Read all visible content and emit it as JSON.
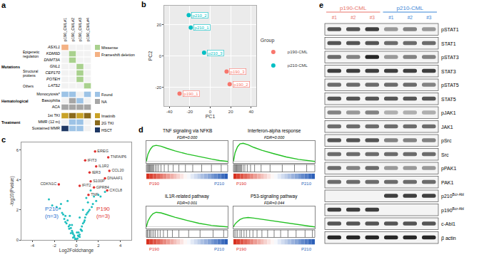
{
  "panel_a": {
    "label": "a",
    "columns": [
      "p190_CML#1",
      "p190_CML#2",
      "p190_CML#3",
      "p190_CML#4"
    ],
    "sections": [
      {
        "title": "Mutations",
        "legend": [
          {
            "name": "Missense",
            "color": "#a9d18e"
          },
          {
            "name": "Frameshift deletion",
            "color": "#f4b183"
          }
        ],
        "subgroups": [
          {
            "label": [
              "Epigenetic",
              "regulation"
            ],
            "rows": [
              {
                "name": "ASXL1",
                "cells": [
                  "Frameshift deletion",
                  null,
                  null,
                  null
                ]
              },
              {
                "name": "KDM6D",
                "cells": [
                  null,
                  "Missense",
                  null,
                  null
                ]
              },
              {
                "name": "DNMT3A",
                "cells": [
                  null,
                  "Missense",
                  null,
                  null
                ]
              }
            ]
          },
          {
            "label": [
              "Structural",
              "protiens"
            ],
            "rows": [
              {
                "name": "GNL1",
                "cells": [
                  null,
                  null,
                  "Missense",
                  null
                ]
              },
              {
                "name": "CEP170",
                "cells": [
                  null,
                  null,
                  "Missense",
                  null
                ]
              },
              {
                "name": "POTEH",
                "cells": [
                  null,
                  null,
                  "Missense",
                  null
                ]
              }
            ]
          },
          {
            "label": [
              "Others"
            ],
            "rows": [
              {
                "name": "LATS2",
                "cells": [
                  null,
                  null,
                  null,
                  "Missense"
                ]
              }
            ]
          }
        ]
      },
      {
        "title": "Hematological",
        "legend": [
          {
            "name": "Found",
            "color": "#9dc3e6"
          },
          {
            "name": "NA",
            "color": "#a6a6a6"
          }
        ],
        "rows": [
          {
            "name": "Monocytosis*",
            "cells": [
              "Found",
              "Found",
              null,
              "Found"
            ]
          },
          {
            "name": "Basophilia",
            "cells": [
              null,
              "NA",
              "Found",
              null
            ]
          },
          {
            "name": "ACA",
            "cells": [
              "NA",
              "NA",
              "NA",
              "NA"
            ]
          }
        ]
      },
      {
        "title": "Treatment",
        "legend": [
          {
            "name": "Imatinib",
            "color": "#c9a227"
          },
          {
            "name": "2G TKI",
            "color": "#8a6a1c"
          },
          {
            "name": "HSCT",
            "color": "#1f3864"
          }
        ],
        "rows": [
          {
            "name": "1st TKI",
            "cells": [
              "Imatinib",
              "2G TKI",
              "Imatinib",
              "2G TKI"
            ]
          },
          {
            "name": "MMR (12 m)",
            "cells": [
              null,
              "Found",
              "Found",
              null
            ]
          },
          {
            "name": "Sustained MMR",
            "cells": [
              "HSCT",
              "Found",
              "Found",
              null
            ]
          }
        ]
      }
    ]
  },
  "chart_data": [
    {
      "type": "scatter",
      "label": "b",
      "x_label": "PC1",
      "y_label": "PC2",
      "legend_title": "Group",
      "legend": "right",
      "grid": true,
      "xlim": [
        -45,
        45
      ],
      "xticks": [
        -40,
        -20,
        0,
        20,
        40
      ],
      "ylim": [
        -32,
        32
      ],
      "yticks": [
        -20,
        0,
        20
      ],
      "series": [
        {
          "name": "p190-CML",
          "color": "#F8766D",
          "labels": [
            "p190_1",
            "p190_2",
            "p190_3"
          ],
          "x": [
            -30,
            19,
            16
          ],
          "y": [
            -24,
            -18,
            -10
          ]
        },
        {
          "name": "p210-CML",
          "color": "#00BFC4",
          "labels": [
            "p210_1",
            "p210_2",
            "p210_3"
          ],
          "x": [
            -19,
            -21,
            -6
          ],
          "y": [
            18,
            26,
            2
          ]
        }
      ]
    },
    {
      "type": "scatter",
      "label": "c",
      "x_label": "Log2Foldchange",
      "y_label": "-log10(Pvalue)",
      "grid": false,
      "xlim": [
        -5,
        5
      ],
      "xticks": [
        -4,
        -2,
        0,
        2,
        4
      ],
      "ylim": [
        0,
        6.5
      ],
      "yticks": [
        0,
        2,
        4,
        6
      ],
      "color": "#1fbfbf",
      "x": [
        -0.1,
        0.1,
        -0.2,
        0.2,
        -0.3,
        0.3,
        0.0,
        -0.4,
        0.4,
        -0.5,
        0.5,
        -0.6,
        0.6,
        -0.8,
        0.8,
        -1.0,
        1.0,
        -1.2,
        1.2,
        -1.5,
        1.5,
        -0.3,
        0.3,
        -0.7,
        0.7,
        -1.1,
        1.1,
        -0.2,
        0.2,
        -0.9,
        0.9,
        -1.8,
        1.8,
        -2.2,
        2.2,
        -0.5,
        0.5,
        -1.3,
        1.4,
        -0.1,
        0.15,
        -0.35,
        0.45,
        -0.65,
        0.75,
        -1.0,
        1.05,
        -2.5,
        2.6,
        0.9,
        -0.4,
        0.6,
        1.6,
        -1.4,
        2.0,
        -0.8,
        1.3,
        0.3,
        -0.6,
        0.05
      ],
      "y": [
        0.05,
        0.1,
        0.2,
        0.25,
        0.4,
        0.35,
        0.02,
        0.6,
        0.7,
        0.8,
        0.9,
        1.0,
        1.1,
        1.3,
        1.5,
        1.6,
        1.8,
        1.7,
        2.0,
        2.1,
        2.4,
        0.15,
        0.2,
        0.9,
        1.2,
        1.4,
        1.9,
        0.3,
        0.5,
        1.1,
        1.7,
        2.2,
        2.6,
        2.3,
        2.9,
        0.45,
        0.6,
        1.8,
        2.2,
        0.1,
        0.3,
        0.5,
        0.65,
        0.75,
        1.3,
        1.2,
        2.5,
        2.7,
        3.2,
        2.8,
        1.0,
        2.0,
        2.9,
        2.4,
        3.0,
        2.6,
        3.3,
        1.5,
        1.6,
        0.5
      ],
      "highlight": {
        "color": "#e03030",
        "labels": [
          "EREG",
          "TNFAIP6",
          "IFIT3",
          "IL1R2",
          "CCL20",
          "IER3",
          "DNAAF1",
          "S100P",
          "IFIT2",
          "GPR84",
          "CXCL8",
          "TNF",
          "CDKN1C"
        ],
        "x": [
          1.7,
          2.9,
          0.8,
          1.8,
          3.0,
          1.2,
          2.6,
          1.3,
          0.3,
          1.6,
          2.8,
          1.1,
          -1.6
        ],
        "y": [
          5.9,
          5.5,
          5.3,
          4.9,
          4.6,
          4.5,
          4.1,
          3.9,
          3.6,
          3.5,
          3.3,
          3.0,
          3.7
        ]
      },
      "group_texts": [
        {
          "lines": [
            "P210",
            "(n=3)"
          ],
          "color": "#1f6fd1"
        },
        {
          "lines": [
            "P190",
            "(n=3)"
          ],
          "color": "#e03030"
        }
      ]
    },
    {
      "type": "line",
      "label": "d",
      "panels": [
        {
          "title": "TNF signaling via NFKB",
          "subtitle": "FDR=0.000",
          "color": "#22c022",
          "tick_labels": false,
          "xlim": [
            0,
            100
          ],
          "ylim": [
            -0.05,
            0.7
          ],
          "x": [
            0,
            2,
            5,
            8,
            12,
            18,
            25,
            35,
            50,
            65,
            80,
            90,
            100
          ],
          "values": [
            0,
            0.25,
            0.42,
            0.52,
            0.55,
            0.52,
            0.45,
            0.36,
            0.25,
            0.16,
            0.08,
            0.03,
            0
          ],
          "hits": [
            1,
            2,
            3,
            4,
            5,
            6,
            7,
            8,
            9,
            11,
            13,
            15,
            18,
            22,
            27,
            33,
            40,
            48,
            57,
            68,
            80,
            92
          ],
          "group_labels": [
            {
              "text": "P190",
              "color": "#e03030"
            },
            {
              "text": "P210",
              "color": "#2c5fb8"
            }
          ]
        },
        {
          "title": "Interferon-alpha response",
          "subtitle": "FDR=0.000",
          "color": "#22c022",
          "tick_labels": false,
          "xlim": [
            0,
            100
          ],
          "ylim": [
            -0.05,
            0.7
          ],
          "x": [
            0,
            2,
            5,
            8,
            12,
            18,
            25,
            35,
            50,
            65,
            80,
            90,
            100
          ],
          "values": [
            0,
            0.3,
            0.5,
            0.6,
            0.62,
            0.57,
            0.48,
            0.38,
            0.26,
            0.15,
            0.07,
            0.03,
            0
          ],
          "hits": [
            1,
            2,
            3,
            4,
            5,
            6,
            7,
            8,
            9,
            10,
            12,
            14,
            17,
            21,
            26,
            34,
            45,
            60,
            75,
            90
          ],
          "group_labels": [
            {
              "text": "P190",
              "color": "#e03030"
            },
            {
              "text": "P210",
              "color": "#2c5fb8"
            }
          ]
        },
        {
          "title": "IL1R-related pathway",
          "subtitle": "FDR=0.001",
          "color": "#22c022",
          "tick_labels": false,
          "xlim": [
            0,
            100
          ],
          "ylim": [
            -0.05,
            0.7
          ],
          "x": [
            0,
            2,
            5,
            8,
            12,
            18,
            25,
            35,
            50,
            65,
            80,
            90,
            100
          ],
          "values": [
            0,
            0.2,
            0.35,
            0.45,
            0.5,
            0.48,
            0.42,
            0.33,
            0.22,
            0.12,
            0.05,
            0.02,
            0
          ],
          "hits": [
            1,
            2,
            4,
            5,
            7,
            9,
            11,
            14,
            17,
            21,
            26,
            32,
            40,
            52,
            66,
            82,
            95
          ],
          "group_labels": [
            {
              "text": "P190",
              "color": "#e03030"
            },
            {
              "text": "P210",
              "color": "#2c5fb8"
            }
          ]
        },
        {
          "title": "P53-signaling pathway",
          "subtitle": "FDR=0.044",
          "color": "#22c022",
          "tick_labels": false,
          "xlim": [
            0,
            100
          ],
          "ylim": [
            -0.05,
            0.7
          ],
          "x": [
            0,
            2,
            5,
            8,
            12,
            18,
            25,
            35,
            50,
            65,
            80,
            90,
            100
          ],
          "values": [
            0,
            0.1,
            0.18,
            0.25,
            0.3,
            0.32,
            0.3,
            0.26,
            0.2,
            0.13,
            0.07,
            0.03,
            0
          ],
          "hits": [
            1,
            3,
            5,
            8,
            10,
            13,
            16,
            20,
            24,
            29,
            35,
            42,
            50,
            58,
            67,
            77,
            88,
            97
          ],
          "group_labels": [
            {
              "text": "P190",
              "color": "#e03030"
            },
            {
              "text": "P210",
              "color": "#2c5fb8"
            }
          ]
        }
      ]
    }
  ],
  "panel_e": {
    "label": "e",
    "groups": [
      {
        "name": "p190-CML",
        "color": "#e8736b",
        "lanes": [
          "#1",
          "#2",
          "#3"
        ]
      },
      {
        "name": "p210-CML",
        "color": "#3a86d6",
        "lanes": [
          "#1",
          "#2",
          "#3"
        ]
      }
    ],
    "rows": [
      {
        "label": "pSTAT1",
        "intensity": [
          0.7,
          0.7,
          0.8,
          0.4,
          0.5,
          0.4
        ]
      },
      {
        "label": "STAT1",
        "intensity": [
          0.7,
          0.7,
          0.7,
          0.6,
          0.6,
          0.6
        ]
      },
      {
        "label": "pSTAT3",
        "intensity": [
          0.6,
          0.5,
          0.9,
          0.4,
          0.5,
          0.5
        ]
      },
      {
        "label": "STAT3",
        "intensity": [
          0.8,
          0.8,
          0.8,
          0.8,
          0.8,
          0.8
        ]
      },
      {
        "label": "pSTAT5",
        "intensity": [
          0.6,
          0.6,
          0.6,
          0.6,
          0.6,
          0.5
        ]
      },
      {
        "label": "STAT5",
        "intensity": [
          0.7,
          0.7,
          0.7,
          0.7,
          0.7,
          0.7
        ]
      },
      {
        "label": "pJAK1",
        "intensity": [
          0.5,
          0.4,
          0.5,
          0.3,
          0.3,
          0.3
        ]
      },
      {
        "label": "JAK1",
        "intensity": [
          0.6,
          0.6,
          0.6,
          0.6,
          0.6,
          0.6
        ]
      },
      {
        "label": "pSrc",
        "intensity": [
          0.7,
          0.7,
          0.7,
          0.5,
          0.5,
          0.5
        ]
      },
      {
        "label": "Src",
        "intensity": [
          0.6,
          0.6,
          0.6,
          0.6,
          0.6,
          0.6
        ]
      },
      {
        "label": "pPAK1",
        "intensity": [
          0.6,
          0.5,
          0.6,
          0.4,
          0.4,
          0.4
        ]
      },
      {
        "label": "PAK1",
        "intensity": [
          0.6,
          0.6,
          0.6,
          0.6,
          0.6,
          0.6
        ]
      },
      {
        "label": "p210",
        "superscript": "Bcr-Abl",
        "intensity": [
          0,
          0,
          0,
          0.8,
          0.8,
          0.8
        ]
      },
      {
        "label": "p190",
        "superscript": "Bcr-Abl",
        "intensity": [
          0.8,
          0.8,
          0.8,
          0,
          0,
          0
        ]
      },
      {
        "label": "c-Abl1",
        "intensity": [
          0.7,
          0.7,
          0.7,
          0.7,
          0.7,
          0.7
        ]
      },
      {
        "label": "β actin",
        "intensity": [
          0.9,
          0.9,
          0.9,
          0.9,
          0.9,
          0.9
        ]
      }
    ]
  }
}
